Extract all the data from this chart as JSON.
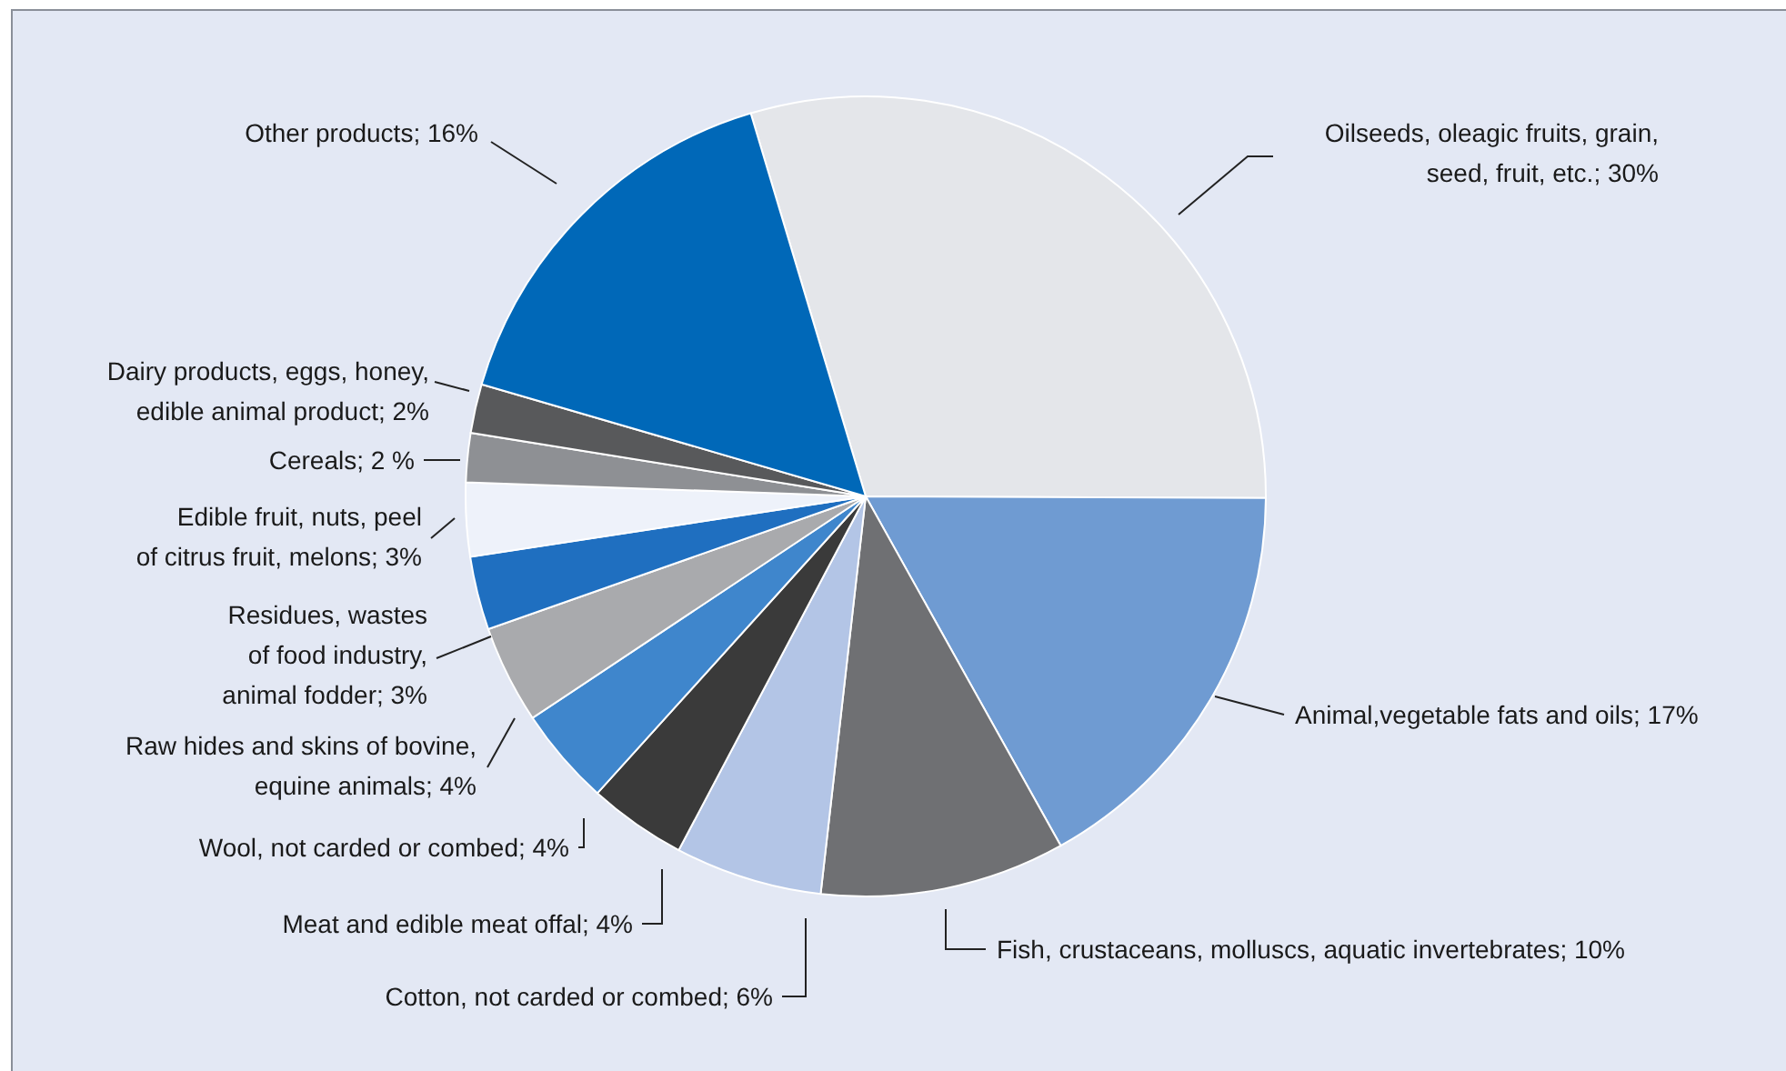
{
  "chart_data": {
    "type": "pie",
    "categories": [
      "Oilseeds, oleagic fruits, grain, seed, fruit, etc.",
      "Animal,vegetable fats and oils",
      "Fish, crustaceans, molluscs, aquatic invertebrates",
      "Cotton, not carded or combed",
      "Meat and edible meat offal",
      "Wool, not carded or combed",
      "Raw hides and skins of bovine, equine animals",
      "Residues, wastes of food industry, animal fodder",
      "Edible fruit, nuts, peel of citrus fruit, melons",
      "Cereals",
      "Dairy products, eggs, honey, edible animal product",
      "Other products"
    ],
    "values": [
      30,
      17,
      10,
      6,
      4,
      4,
      4,
      3,
      3,
      2,
      2,
      16
    ],
    "value_labels": [
      "30%",
      "17%",
      "10%",
      "6%",
      "4%",
      "4%",
      "4%",
      "3%",
      "3%",
      "2 %",
      "2%",
      "16%"
    ],
    "colors": [
      "#e4e6ea",
      "#6f9bd2",
      "#6f7073",
      "#b3c5e6",
      "#3a3a3a",
      "#3f86cc",
      "#a9aaad",
      "#1f6fc0",
      "#eef2fa",
      "#8e9094",
      "#58595b",
      "#0068b8"
    ]
  }
}
